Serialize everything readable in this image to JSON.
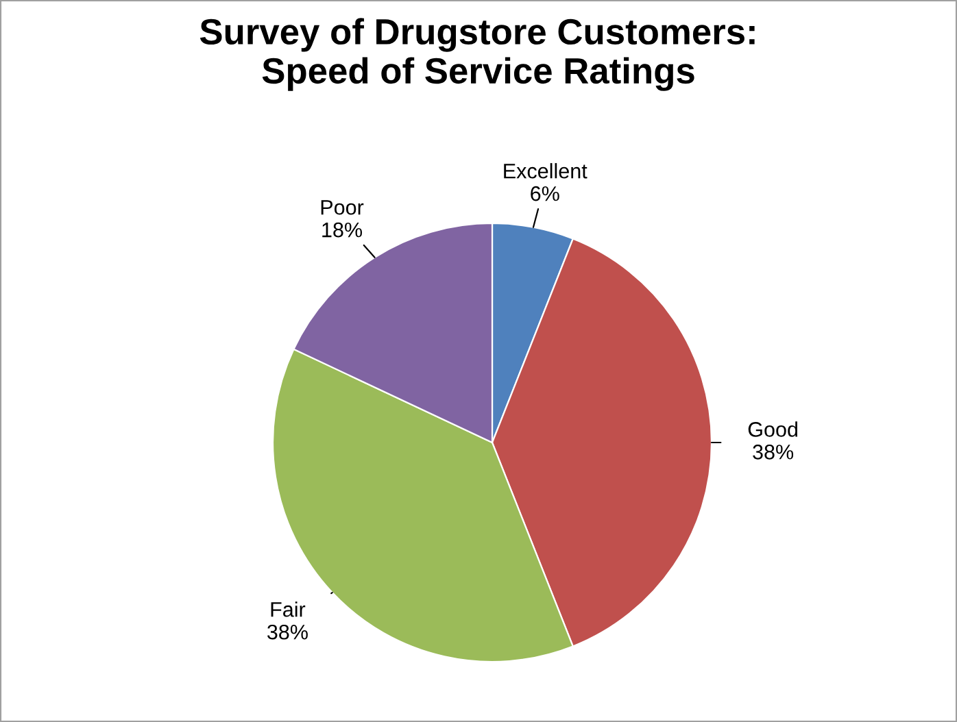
{
  "chart_data": {
    "type": "pie",
    "title": "Survey of Drugstore Customers:\nSpeed of Service Ratings",
    "categories": [
      "Excellent",
      "Good",
      "Fair",
      "Poor"
    ],
    "values": [
      6,
      38,
      38,
      18
    ],
    "value_labels": [
      "6%",
      "38%",
      "38%",
      "18%"
    ],
    "colors": [
      "#4f81bd",
      "#c0504d",
      "#9bbb59",
      "#8064a2"
    ],
    "legend": false
  }
}
